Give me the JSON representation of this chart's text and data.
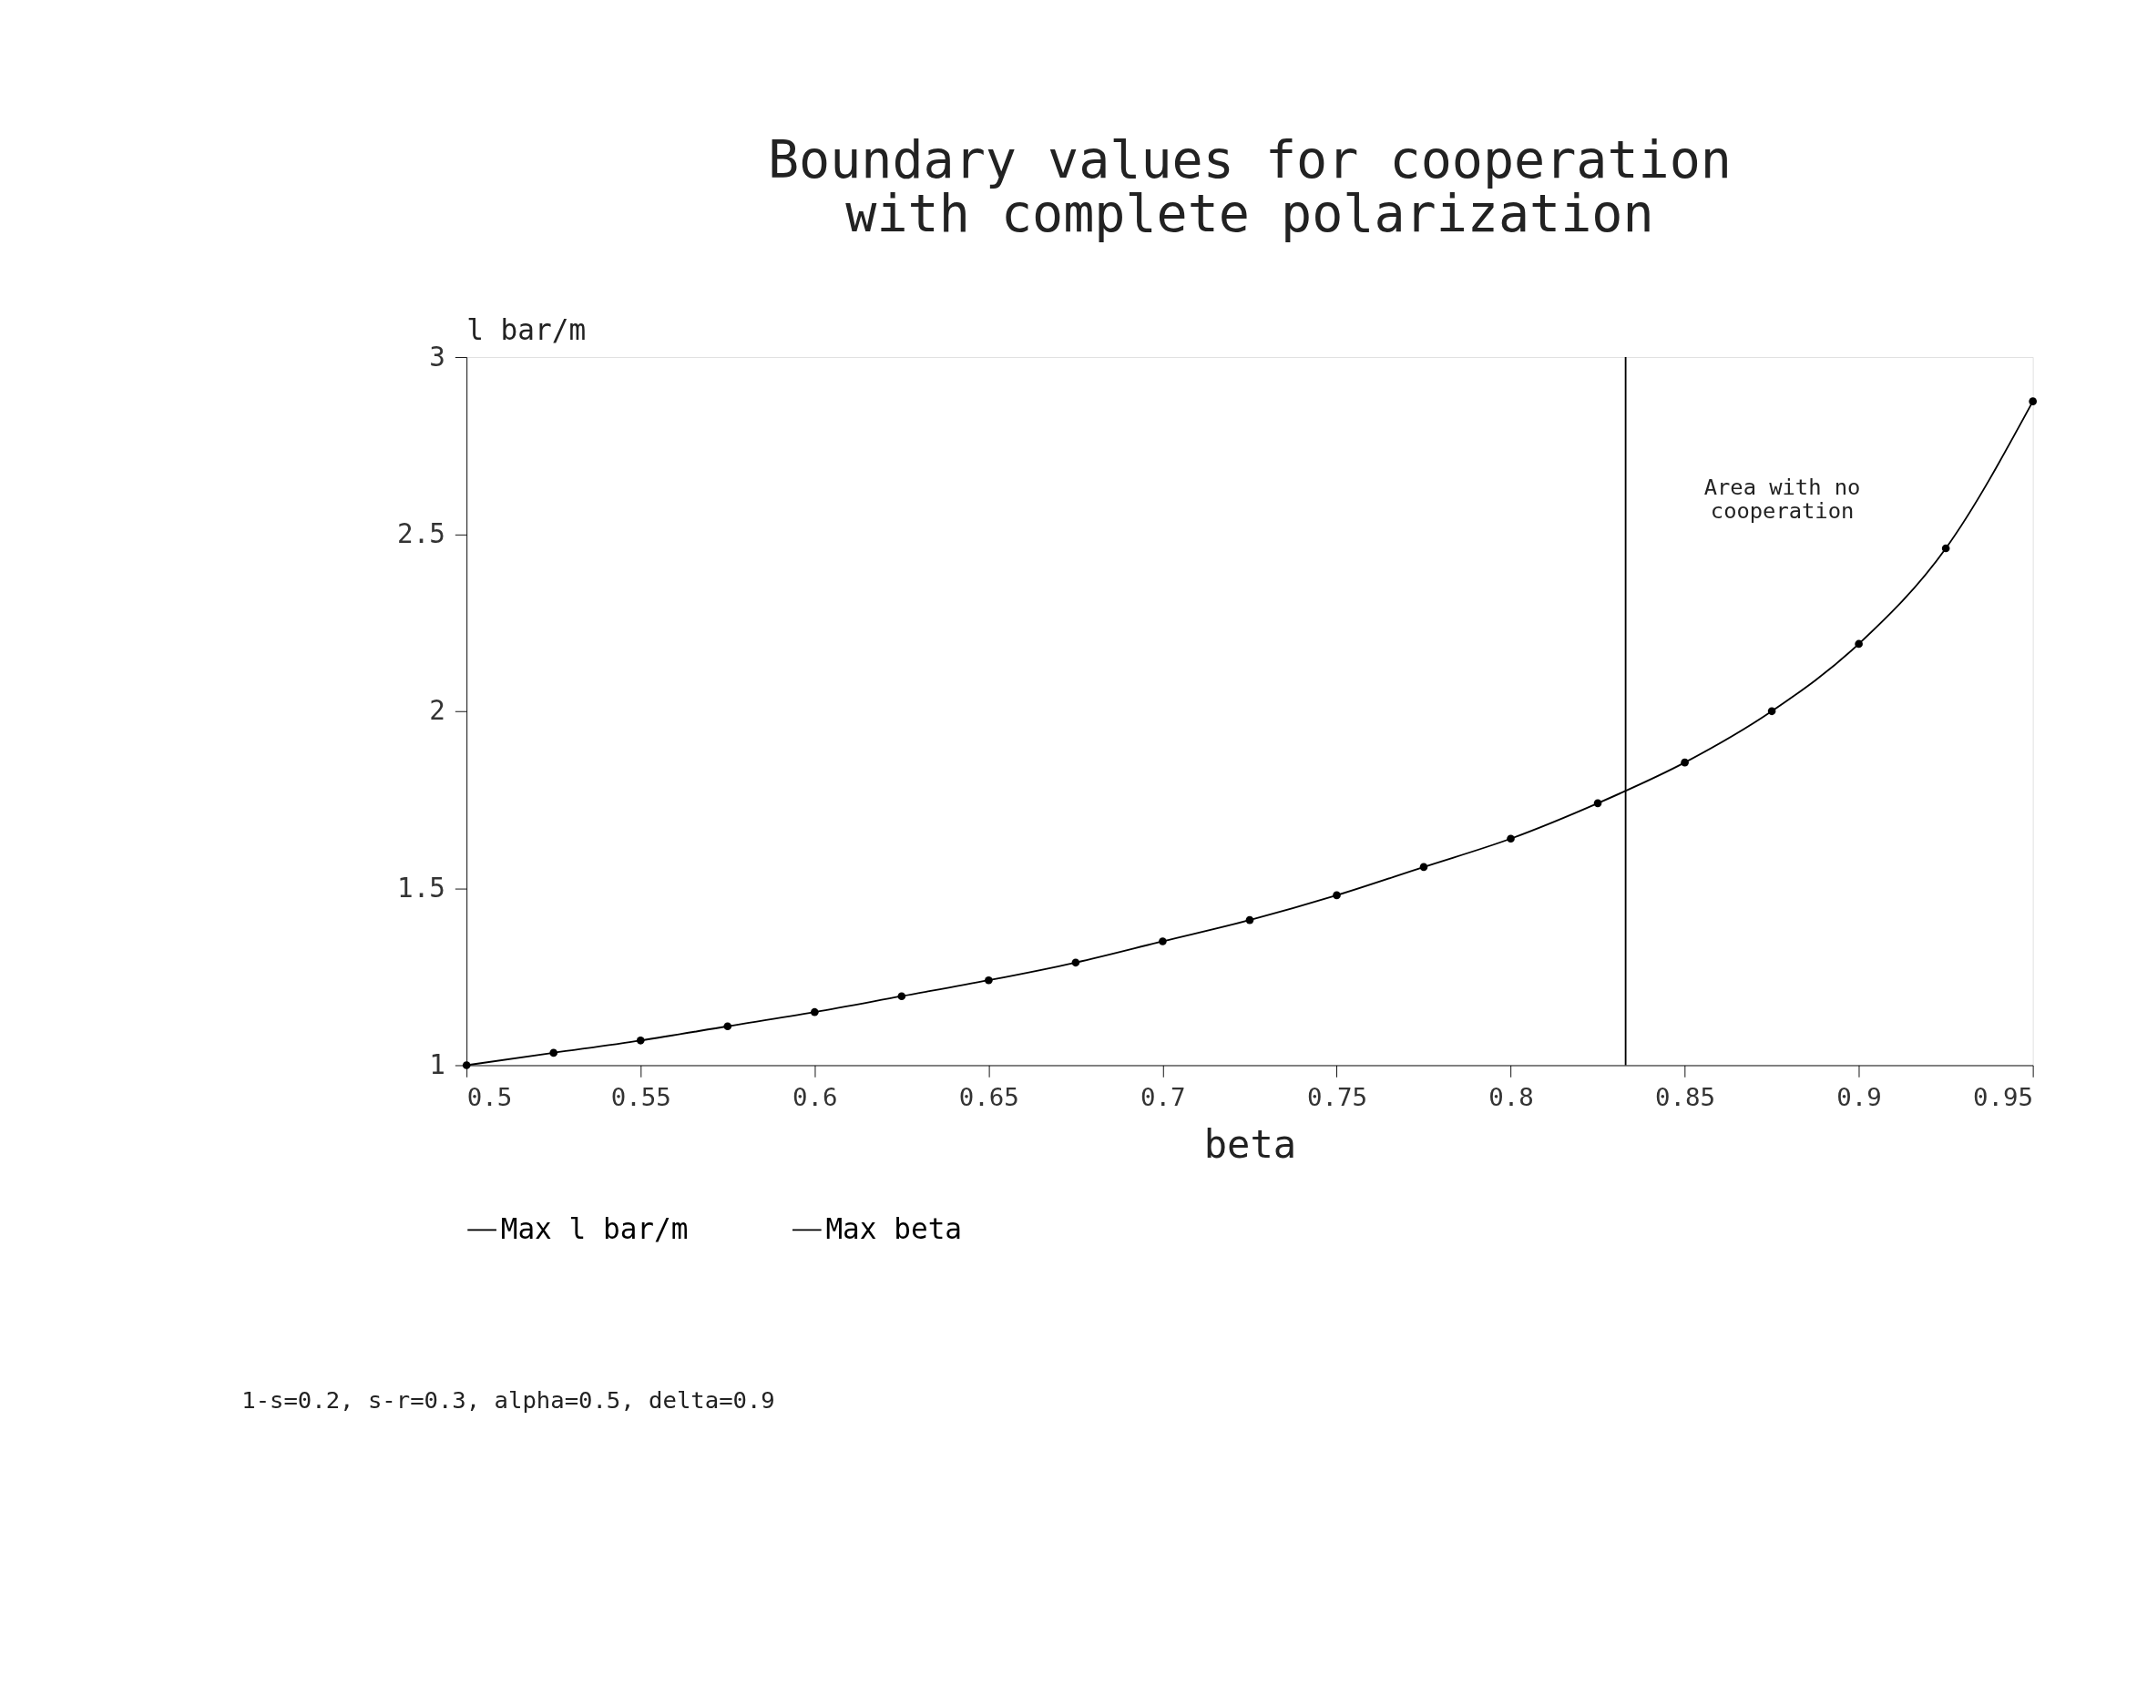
{
  "chart_data": {
    "type": "line",
    "title": [
      "Boundary values for cooperation",
      "with complete polarization"
    ],
    "xlabel": "beta",
    "ylabel": "l bar/m",
    "xlim": [
      0.5,
      0.95
    ],
    "xticks": [
      0.5,
      0.55,
      0.6,
      0.65,
      0.7,
      0.75,
      0.8,
      0.85,
      0.9,
      0.95
    ],
    "ylim": [
      1,
      3
    ],
    "yticks": [
      1,
      1.5,
      2,
      2.5,
      3
    ],
    "grid": false,
    "legend": "bottom",
    "series": [
      {
        "name": "Max l bar/m",
        "color": "#000000",
        "marker": "circle",
        "x": [
          0.5,
          0.525,
          0.55,
          0.575,
          0.6,
          0.625,
          0.65,
          0.675,
          0.7,
          0.725,
          0.75,
          0.775,
          0.8,
          0.825,
          0.85,
          0.875,
          0.9,
          0.925,
          0.95
        ],
        "values": [
          1.0,
          1.035,
          1.07,
          1.11,
          1.15,
          1.195,
          1.24,
          1.29,
          1.35,
          1.41,
          1.48,
          1.56,
          1.64,
          1.74,
          1.855,
          2.0,
          2.19,
          2.46,
          2.875
        ]
      },
      {
        "name": "Max beta",
        "color": "#000000",
        "marker": "none",
        "x": [
          0.833,
          0.833
        ],
        "values": [
          1,
          3
        ]
      }
    ],
    "annotations": [
      "Area with no\ncooperation",
      "1-s=0.2, s-r=0.3, alpha=0.5, delta=0.9"
    ]
  }
}
